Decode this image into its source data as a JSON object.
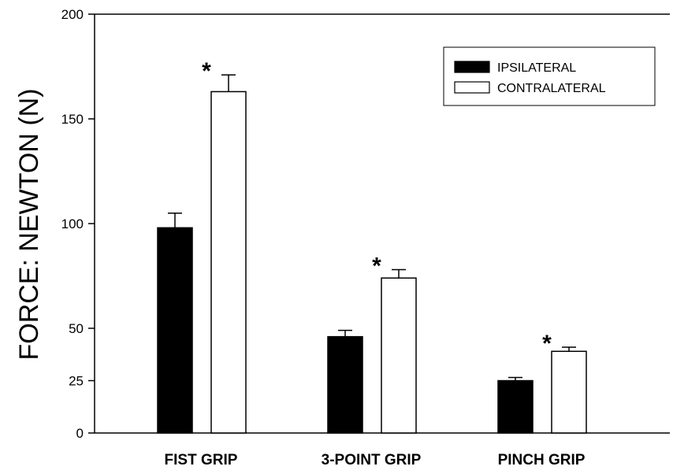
{
  "chart_data": {
    "type": "bar",
    "title": "",
    "xlabel": "",
    "ylabel": "FORCE: NEWTON (N)",
    "ylim": [
      0,
      200
    ],
    "yticks": [
      0,
      25,
      50,
      100,
      150,
      200
    ],
    "categories": [
      "FIST GRIP",
      "3-POINT GRIP",
      "PINCH GRIP"
    ],
    "series": [
      {
        "name": "IPSILATERAL",
        "color": "#000000",
        "values": [
          98,
          46,
          25
        ],
        "errors": [
          7,
          3,
          1.5
        ]
      },
      {
        "name": "CONTRALATERAL",
        "color": "#ffffff",
        "values": [
          163,
          74,
          39
        ],
        "errors": [
          8,
          4,
          2
        ]
      }
    ],
    "annotations": [
      "*",
      "*",
      "*"
    ],
    "legend": {
      "position": "top-right"
    },
    "grid": false
  }
}
